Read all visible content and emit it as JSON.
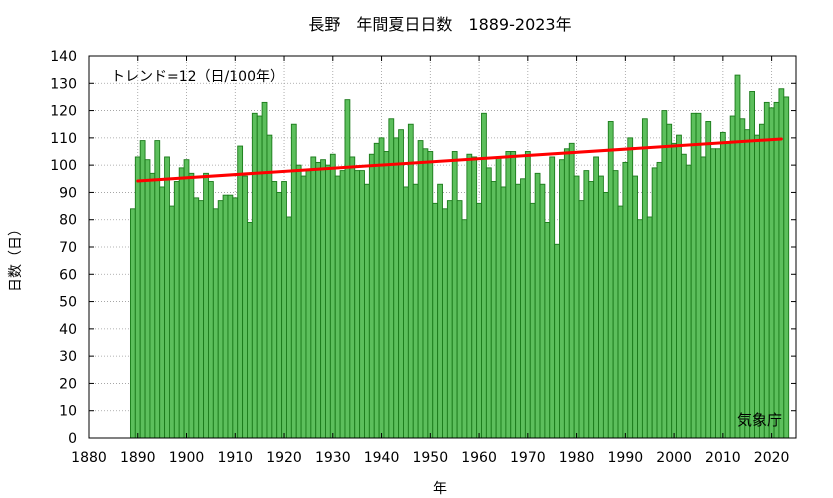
{
  "chart_data": {
    "type": "bar",
    "title": "長野　年間夏日日数　1889-2023年",
    "xlabel": "年",
    "ylabel": "日数（日）",
    "trend_label": "トレンド=12（日/100年）",
    "source_label": "気象庁",
    "xlim": [
      1880,
      2025
    ],
    "ylim": [
      0,
      140
    ],
    "x_ticks": [
      1880,
      1890,
      1900,
      1910,
      1920,
      1930,
      1940,
      1950,
      1960,
      1970,
      1980,
      1990,
      2000,
      2010,
      2020
    ],
    "y_ticks": [
      0,
      10,
      20,
      30,
      40,
      50,
      60,
      70,
      80,
      90,
      100,
      110,
      120,
      130,
      140
    ],
    "grid": true,
    "colors": {
      "bar_fill": "#5cbf5c",
      "bar_edge": "#1a7a1a",
      "trend_line": "#ff0000"
    },
    "series": [
      {
        "x": [
          1889,
          1890,
          1891,
          1892,
          1893,
          1894,
          1895,
          1896,
          1897,
          1898,
          1899,
          1900,
          1901,
          1902,
          1903,
          1904,
          1905,
          1906,
          1907,
          1908,
          1909,
          1910,
          1911,
          1912,
          1913,
          1914,
          1915,
          1916,
          1917,
          1918,
          1919,
          1920,
          1921,
          1922,
          1923,
          1924,
          1925,
          1926,
          1927,
          1928,
          1929,
          1930,
          1931,
          1932,
          1933,
          1934,
          1935,
          1936,
          1937,
          1938,
          1939,
          1940,
          1941,
          1942,
          1943,
          1944,
          1945,
          1946,
          1947,
          1948,
          1949,
          1950,
          1951,
          1952,
          1953,
          1954,
          1955,
          1956,
          1957,
          1958,
          1959,
          1960,
          1961,
          1962,
          1963,
          1964,
          1965,
          1966,
          1967,
          1968,
          1969,
          1970,
          1971,
          1972,
          1973,
          1974,
          1975,
          1976,
          1977,
          1978,
          1979,
          1980,
          1981,
          1982,
          1983,
          1984,
          1985,
          1986,
          1987,
          1988,
          1989,
          1990,
          1991,
          1992,
          1993,
          1994,
          1995,
          1996,
          1997,
          1998,
          1999,
          2000,
          2001,
          2002,
          2003,
          2004,
          2005,
          2006,
          2007,
          2008,
          2009,
          2010,
          2011,
          2012,
          2013,
          2014,
          2015,
          2016,
          2017,
          2018,
          2019,
          2020,
          2021,
          2022,
          2023
        ],
        "values": [
          84,
          103,
          109,
          102,
          97,
          109,
          92,
          103,
          85,
          94,
          99,
          102,
          97,
          88,
          87,
          97,
          94,
          84,
          87,
          89,
          89,
          88,
          107,
          96,
          79,
          119,
          118,
          123,
          111,
          94,
          90,
          94,
          81,
          115,
          100,
          96,
          98,
          103,
          101,
          102,
          100,
          104,
          96,
          98,
          124,
          103,
          98,
          98,
          93,
          104,
          108,
          110,
          105,
          117,
          110,
          113,
          92,
          115,
          93,
          109,
          106,
          105,
          86,
          93,
          84,
          87,
          105,
          87,
          80,
          104,
          103,
          86,
          119,
          99,
          94,
          103,
          92,
          105,
          105,
          93,
          95,
          105,
          86,
          97,
          93,
          79,
          103,
          71,
          102,
          106,
          108,
          96,
          87,
          98,
          94,
          103,
          96,
          90,
          116,
          98,
          85,
          101,
          110,
          96,
          80,
          117,
          81,
          99,
          101,
          120,
          115,
          108,
          111,
          104,
          100,
          119,
          119,
          103,
          116,
          106,
          106,
          112,
          108,
          118,
          133,
          117,
          113,
          127,
          111,
          115,
          123,
          121,
          123,
          128,
          125
        ]
      }
    ],
    "trend": {
      "x": [
        1890,
        2022
      ],
      "values": [
        94.2,
        109.6
      ]
    }
  }
}
